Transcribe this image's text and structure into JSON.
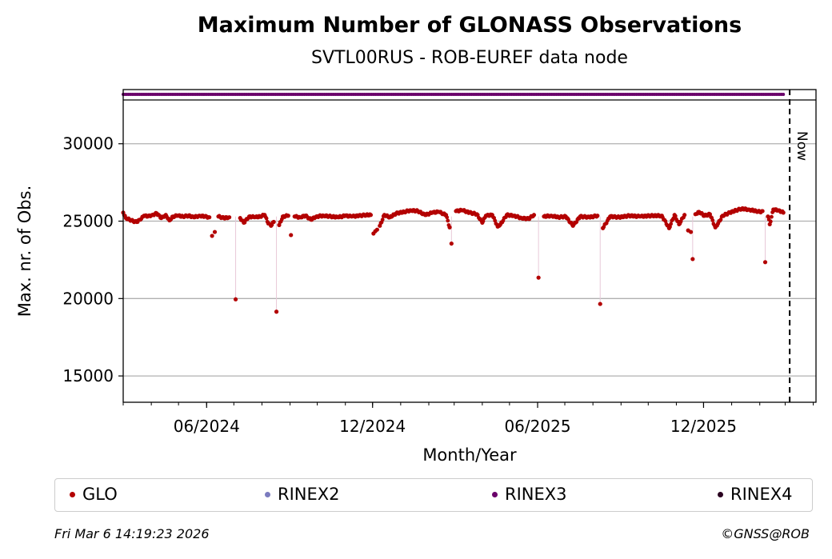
{
  "header": {
    "title": "Maximum Number of GLONASS Observations",
    "subtitle": "SVTL00RUS - ROB-EUREF data node"
  },
  "footer": {
    "timestamp": "Fri Mar  6 14:19:23 2026",
    "copyright": "©GNSS@ROB"
  },
  "legend": [
    {
      "label": "GLO",
      "color": "#b30000"
    },
    {
      "label": "RINEX2",
      "color": "#7b7bbf"
    },
    {
      "label": "RINEX3",
      "color": "#6a006a"
    },
    {
      "label": "RINEX4",
      "color": "#2a0020"
    }
  ],
  "chart_data": {
    "type": "scatter",
    "title": "Maximum Number of GLONASS Observations",
    "subtitle": "SVTL00RUS - ROB-EUREF data node",
    "xlabel": "Month/Year",
    "ylabel": "Max. nr. of Obs.",
    "x_range": [
      "2024-03-01",
      "2026-04-04"
    ],
    "ylim": [
      13300,
      33500
    ],
    "yticks": [
      15000,
      20000,
      25000,
      30000
    ],
    "xtick_labels": [
      "06/2024",
      "12/2024",
      "06/2025",
      "12/2025"
    ],
    "xticks": [
      "2024-06-01",
      "2024-12-01",
      "2025-06-01",
      "2025-12-01"
    ],
    "grid": "horizontal",
    "now_marker": {
      "label": "Now",
      "date": "2026-03-06"
    },
    "rinex_band": {
      "series": "RINEX3",
      "start": "2024-03-01",
      "end": "2026-02-27"
    },
    "series": [
      {
        "name": "GLO",
        "color": "#b30000",
        "points": [
          [
            "2024-03-01",
            25550
          ],
          [
            "2024-03-04",
            25200
          ],
          [
            "2024-03-08",
            25100
          ],
          [
            "2024-03-12",
            25000
          ],
          [
            "2024-03-16",
            24950
          ],
          [
            "2024-03-20",
            25100
          ],
          [
            "2024-03-24",
            25350
          ],
          [
            "2024-03-28",
            25300
          ],
          [
            "2024-04-02",
            25400
          ],
          [
            "2024-04-07",
            25500
          ],
          [
            "2024-04-12",
            25200
          ],
          [
            "2024-04-17",
            25400
          ],
          [
            "2024-04-21",
            25050
          ],
          [
            "2024-04-25",
            25300
          ],
          [
            "2024-04-30",
            25350
          ],
          [
            "2024-05-06",
            25300
          ],
          [
            "2024-05-12",
            25350
          ],
          [
            "2024-05-18",
            25250
          ],
          [
            "2024-05-24",
            25350
          ],
          [
            "2024-05-30",
            25300
          ],
          [
            "2024-06-04",
            25250
          ],
          [
            "2024-06-07",
            24050
          ],
          [
            "2024-06-10",
            24300
          ],
          [
            "2024-06-14",
            25300
          ],
          [
            "2024-06-20",
            25200
          ],
          [
            "2024-06-26",
            25250
          ],
          [
            "2024-07-03",
            19950
          ],
          [
            "2024-07-08",
            25200
          ],
          [
            "2024-07-12",
            24900
          ],
          [
            "2024-07-18",
            25300
          ],
          [
            "2024-07-24",
            25250
          ],
          [
            "2024-07-30",
            25300
          ],
          [
            "2024-08-04",
            25400
          ],
          [
            "2024-08-08",
            24850
          ],
          [
            "2024-08-11",
            24700
          ],
          [
            "2024-08-14",
            24950
          ],
          [
            "2024-08-17",
            19150
          ],
          [
            "2024-08-20",
            24750
          ],
          [
            "2024-08-24",
            25300
          ],
          [
            "2024-08-30",
            25350
          ],
          [
            "2024-09-02",
            24100
          ],
          [
            "2024-09-06",
            25300
          ],
          [
            "2024-09-12",
            25250
          ],
          [
            "2024-09-18",
            25350
          ],
          [
            "2024-09-24",
            25100
          ],
          [
            "2024-09-30",
            25300
          ],
          [
            "2024-10-08",
            25350
          ],
          [
            "2024-10-16",
            25300
          ],
          [
            "2024-10-24",
            25250
          ],
          [
            "2024-11-01",
            25350
          ],
          [
            "2024-11-08",
            25300
          ],
          [
            "2024-11-16",
            25350
          ],
          [
            "2024-11-24",
            25400
          ],
          [
            "2024-11-29",
            25400
          ],
          [
            "2024-12-02",
            24200
          ],
          [
            "2024-12-04",
            24350
          ],
          [
            "2024-12-06",
            24450
          ],
          [
            "2024-12-09",
            24700
          ],
          [
            "2024-12-14",
            25400
          ],
          [
            "2024-12-20",
            25250
          ],
          [
            "2024-12-27",
            25500
          ],
          [
            "2025-01-05",
            25600
          ],
          [
            "2025-01-12",
            25700
          ],
          [
            "2025-01-20",
            25650
          ],
          [
            "2025-01-28",
            25400
          ],
          [
            "2025-02-05",
            25550
          ],
          [
            "2025-02-12",
            25600
          ],
          [
            "2025-02-20",
            25400
          ],
          [
            "2025-02-24",
            24600
          ],
          [
            "2025-02-26",
            23550
          ],
          [
            "2025-03-03",
            25650
          ],
          [
            "2025-03-10",
            25700
          ],
          [
            "2025-03-18",
            25550
          ],
          [
            "2025-03-26",
            25450
          ],
          [
            "2025-04-01",
            24900
          ],
          [
            "2025-04-05",
            25350
          ],
          [
            "2025-04-12",
            25400
          ],
          [
            "2025-04-18",
            24650
          ],
          [
            "2025-04-21",
            24800
          ],
          [
            "2025-04-28",
            25400
          ],
          [
            "2025-05-06",
            25350
          ],
          [
            "2025-05-14",
            25200
          ],
          [
            "2025-05-22",
            25150
          ],
          [
            "2025-05-28",
            25400
          ],
          [
            "2025-06-02",
            21350
          ],
          [
            "2025-06-08",
            25300
          ],
          [
            "2025-06-16",
            25350
          ],
          [
            "2025-06-24",
            25250
          ],
          [
            "2025-07-02",
            25300
          ],
          [
            "2025-07-10",
            24700
          ],
          [
            "2025-07-18",
            25300
          ],
          [
            "2025-07-28",
            25250
          ],
          [
            "2025-08-06",
            25350
          ],
          [
            "2025-08-09",
            19650
          ],
          [
            "2025-08-12",
            24550
          ],
          [
            "2025-08-20",
            25300
          ],
          [
            "2025-08-30",
            25250
          ],
          [
            "2025-09-10",
            25350
          ],
          [
            "2025-09-22",
            25300
          ],
          [
            "2025-10-04",
            25350
          ],
          [
            "2025-10-16",
            25350
          ],
          [
            "2025-10-24",
            24550
          ],
          [
            "2025-10-30",
            25400
          ],
          [
            "2025-11-04",
            24800
          ],
          [
            "2025-11-10",
            25400
          ],
          [
            "2025-11-14",
            24400
          ],
          [
            "2025-11-17",
            24300
          ],
          [
            "2025-11-19",
            22550
          ],
          [
            "2025-11-22",
            25450
          ],
          [
            "2025-11-26",
            25600
          ],
          [
            "2025-12-02",
            25350
          ],
          [
            "2025-12-08",
            25450
          ],
          [
            "2025-12-14",
            24600
          ],
          [
            "2025-12-17",
            24850
          ],
          [
            "2025-12-22",
            25350
          ],
          [
            "2025-12-30",
            25550
          ],
          [
            "2026-01-06",
            25700
          ],
          [
            "2026-01-12",
            25800
          ],
          [
            "2026-01-20",
            25750
          ],
          [
            "2026-01-28",
            25650
          ],
          [
            "2026-02-01",
            25600
          ],
          [
            "2026-02-04",
            25650
          ],
          [
            "2026-02-07",
            22350
          ],
          [
            "2026-02-10",
            25300
          ],
          [
            "2026-02-12",
            24800
          ],
          [
            "2026-02-16",
            25750
          ],
          [
            "2026-02-22",
            25700
          ],
          [
            "2026-02-27",
            25550
          ]
        ]
      }
    ]
  }
}
